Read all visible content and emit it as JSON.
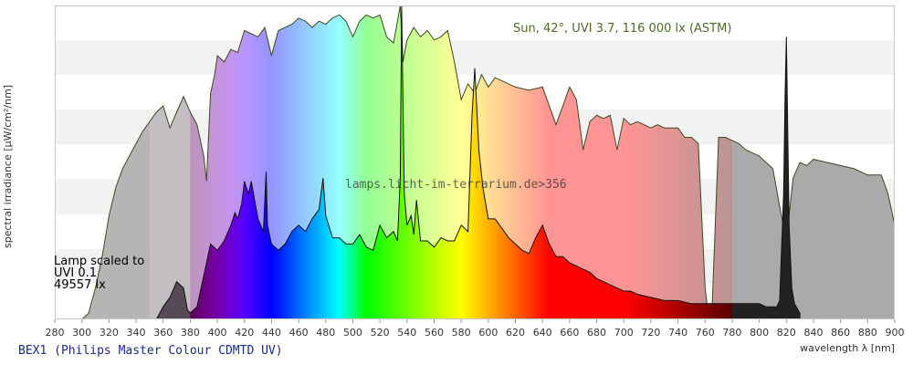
{
  "chart_data": {
    "type": "area",
    "xlabel": "wavelength λ [nm]",
    "ylabel": "spectral irradiance [µW/cm²/nm]",
    "xlim": [
      280,
      900
    ],
    "ylim": [
      0,
      100
    ],
    "xticks": [
      280,
      300,
      320,
      340,
      360,
      380,
      400,
      420,
      440,
      460,
      480,
      500,
      520,
      540,
      560,
      580,
      600,
      620,
      640,
      660,
      680,
      700,
      720,
      740,
      760,
      780,
      800,
      820,
      840,
      860,
      880,
      900
    ],
    "y_tick_labels_shown": false,
    "grid": "horizontal bands",
    "watermark": "lamps.licht-im-terrarium.de>356",
    "lamp_name": "BEX1 (Philips Master Colour CDMTD UV)",
    "sun_label": "Sun, 42°, UVI 3.7, 116 000 lx (ASTM)",
    "lamp_label_lines": [
      "Lamp scaled to",
      "UVI 0.1",
      "49557 lx"
    ],
    "series": [
      {
        "name": "Sun, 42°, UVI 3.7, 116 000 lx (ASTM)",
        "fill": "spectral (pastel)",
        "x": [
          280,
          290,
          300,
          305,
          310,
          315,
          320,
          325,
          330,
          335,
          340,
          345,
          350,
          355,
          360,
          365,
          370,
          375,
          380,
          385,
          390,
          392,
          395,
          398,
          400,
          405,
          410,
          415,
          420,
          425,
          430,
          435,
          440,
          445,
          450,
          455,
          460,
          465,
          470,
          475,
          480,
          485,
          490,
          495,
          500,
          505,
          510,
          515,
          520,
          525,
          530,
          535,
          537,
          540,
          545,
          550,
          555,
          560,
          565,
          570,
          575,
          580,
          585,
          590,
          595,
          600,
          605,
          610,
          620,
          630,
          640,
          650,
          655,
          660,
          665,
          670,
          675,
          680,
          685,
          690,
          695,
          700,
          705,
          710,
          715,
          720,
          725,
          730,
          735,
          740,
          745,
          750,
          755,
          760,
          762,
          765,
          770,
          775,
          780,
          785,
          790,
          800,
          810,
          815,
          820,
          825,
          830,
          835,
          840,
          850,
          860,
          870,
          880,
          890,
          895,
          900
        ],
        "y": [
          0,
          0,
          0,
          2,
          10,
          20,
          33,
          42,
          48,
          52,
          56,
          60,
          63,
          66,
          68,
          61,
          66,
          71,
          66,
          62,
          52,
          44,
          72,
          78,
          84,
          82,
          86,
          85,
          92,
          91,
          90,
          93,
          84,
          92,
          93,
          94,
          96,
          95,
          93,
          95,
          94,
          96,
          97,
          95,
          90,
          95,
          97,
          96,
          97,
          90,
          88,
          100,
          82,
          89,
          93,
          90,
          92,
          89,
          90,
          92,
          82,
          70,
          75,
          72,
          78,
          74,
          77,
          76,
          74,
          73,
          74,
          62,
          68,
          74,
          70,
          54,
          63,
          65,
          64,
          65,
          54,
          64,
          62,
          63,
          62,
          61,
          62,
          61,
          61,
          61,
          58,
          58,
          56,
          10,
          3,
          2,
          58,
          58,
          57,
          56,
          54,
          52,
          48,
          36,
          25,
          45,
          50,
          49,
          51,
          50,
          49,
          48,
          46,
          46,
          40,
          30
        ]
      },
      {
        "name": "Lamp scaled to UVI 0.1",
        "fill": "spectral (saturated)",
        "x": [
          280,
          335,
          340,
          345,
          350,
          355,
          360,
          365,
          370,
          375,
          378,
          380,
          385,
          390,
          395,
          400,
          405,
          410,
          413,
          415,
          418,
          420,
          423,
          425,
          430,
          434,
          436,
          437,
          440,
          445,
          450,
          455,
          460,
          465,
          470,
          475,
          478,
          480,
          485,
          490,
          495,
          500,
          505,
          510,
          515,
          520,
          525,
          530,
          533,
          535,
          536,
          538,
          540,
          543,
          545,
          547,
          550,
          555,
          560,
          565,
          570,
          575,
          580,
          585,
          588,
          590,
          593,
          596,
          600,
          605,
          610,
          615,
          620,
          625,
          630,
          635,
          640,
          645,
          650,
          655,
          660,
          665,
          670,
          675,
          680,
          685,
          690,
          695,
          700,
          705,
          710,
          720,
          730,
          740,
          750,
          760,
          770,
          780,
          790,
          800,
          805,
          810,
          813,
          815,
          818,
          819,
          820,
          821,
          822,
          824,
          826,
          830
        ],
        "y": [
          0,
          0,
          0,
          0,
          0,
          0,
          4,
          7,
          12,
          10,
          3,
          2,
          4,
          14,
          24,
          22,
          25,
          30,
          34,
          32,
          37,
          44,
          40,
          44,
          32,
          28,
          47,
          30,
          24,
          22,
          24,
          28,
          30,
          28,
          32,
          35,
          45,
          33,
          26,
          26,
          24,
          24,
          27,
          23,
          22,
          30,
          26,
          28,
          25,
          45,
          100,
          40,
          30,
          33,
          27,
          38,
          25,
          25,
          23,
          26,
          25,
          25,
          30,
          28,
          65,
          80,
          54,
          42,
          32,
          32,
          29,
          26,
          24,
          22,
          21,
          26,
          30,
          24,
          20,
          20,
          18,
          17,
          16,
          15,
          13,
          12,
          11,
          10,
          9,
          9,
          8,
          7,
          6,
          6,
          5,
          5,
          5,
          5,
          5,
          5,
          4,
          4,
          4,
          6,
          40,
          70,
          90,
          60,
          30,
          10,
          5,
          2
        ]
      }
    ]
  }
}
